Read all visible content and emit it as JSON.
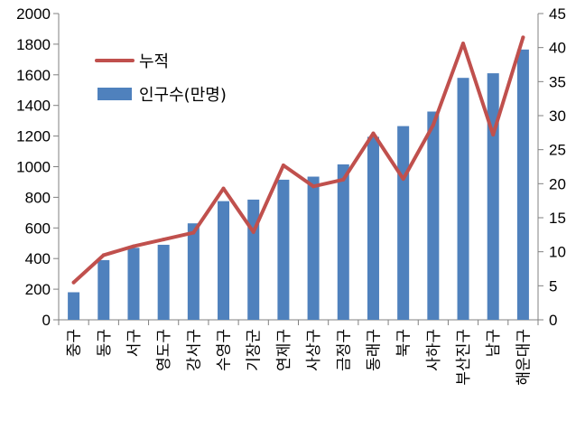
{
  "chart_data": {
    "type": "bar",
    "categories": [
      "중구",
      "동구",
      "서구",
      "영도구",
      "강서구",
      "수영구",
      "기장군",
      "연제구",
      "사상구",
      "금정구",
      "동래구",
      "북구",
      "사하구",
      "부산진구",
      "남구",
      "해운대구"
    ],
    "series": [
      {
        "name": "인구수(만명)",
        "type": "bar",
        "axis": "left",
        "values": [
          180,
          390,
          470,
          490,
          630,
          775,
          785,
          915,
          935,
          1015,
          1195,
          1265,
          1360,
          1580,
          1610,
          1765
        ]
      },
      {
        "name": "누적",
        "type": "line",
        "axis": "right",
        "values": [
          5.5,
          9.5,
          10.8,
          11.8,
          12.8,
          19.3,
          12.9,
          22.7,
          19.6,
          20.6,
          27.4,
          20.7,
          28.6,
          40.6,
          27.2,
          41.5
        ]
      }
    ],
    "ylim_left": [
      0,
      2000
    ],
    "yticks_left": [
      0,
      200,
      400,
      600,
      800,
      1000,
      1200,
      1400,
      1600,
      1800,
      2000
    ],
    "ylim_right": [
      0,
      45
    ],
    "yticks_right": [
      0,
      5,
      10,
      15,
      20,
      25,
      30,
      35,
      40,
      45
    ],
    "legend": {
      "position": "top-left",
      "line_label": "누적",
      "bar_label": "인구수(만명)"
    },
    "grid": false,
    "colors": {
      "bar": "#4F81BD",
      "line": "#C0504D",
      "axis": "#808080"
    }
  }
}
